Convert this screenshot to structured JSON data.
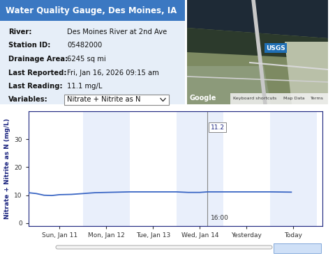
{
  "header": {
    "title": "Water Quality Gauge, Des Moines, IA"
  },
  "info": {
    "rows": [
      [
        "River:",
        "Des Moines River at 2nd Ave"
      ],
      [
        "Station ID:",
        "05482000"
      ],
      [
        "Drainage Area:",
        "6245 sq mi"
      ],
      [
        "Last Reported:",
        "Fri, Jan 16, 2026 09:15 am"
      ],
      [
        "Last Reading:",
        "11.1 mg/L"
      ],
      [
        "Variables:",
        "Nitrate + Nitrite as N"
      ]
    ]
  },
  "map": {
    "badge": "USGS",
    "logo": "Google",
    "footer": [
      "Keyboard shortcuts",
      "Map Data",
      "Terms"
    ]
  },
  "chart_data": {
    "type": "line",
    "ylabel": "Nitrate + Nitrite as N (mg/L)",
    "x": [
      -4,
      0,
      4,
      8,
      12,
      18,
      24,
      30,
      36,
      42,
      48,
      60,
      72,
      78,
      84,
      88,
      96,
      108,
      120,
      131
    ],
    "values": [
      10.9,
      10.6,
      10.0,
      9.9,
      10.2,
      10.3,
      10.6,
      10.9,
      11.0,
      11.1,
      11.2,
      11.2,
      11.2,
      11.0,
      11.0,
      11.2,
      11.2,
      11.2,
      11.2,
      11.1
    ],
    "color": "#3a66c4",
    "xlim": [
      -4,
      147
    ],
    "xticks": [
      {
        "value": 12,
        "label": "Sun, Jan 11"
      },
      {
        "value": 36,
        "label": "Mon, Jan 12"
      },
      {
        "value": 60,
        "label": "Tue, Jan 13"
      },
      {
        "value": 84,
        "label": "Wed, Jan 14"
      },
      {
        "value": 108,
        "label": "Yesterday"
      },
      {
        "value": 132,
        "label": "Today"
      }
    ],
    "ylim": [
      -1,
      40
    ],
    "yticks": [
      0,
      10,
      20,
      30
    ],
    "crosshair": {
      "x": 88,
      "x_label": "16:00",
      "value": 11.2
    }
  }
}
